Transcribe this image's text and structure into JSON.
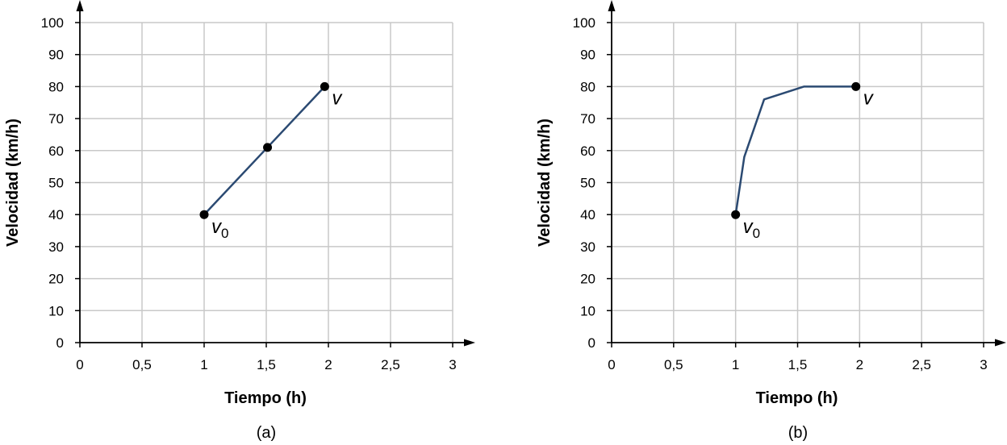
{
  "chart_data": [
    {
      "type": "line",
      "caption": "(a)",
      "xlabel": "Tiempo (h)",
      "ylabel": "Velocidad (km/h)",
      "xlim": [
        0,
        3
      ],
      "ylim": [
        0,
        100
      ],
      "xticks": [
        0,
        0.5,
        1,
        1.5,
        2,
        2.5,
        3
      ],
      "xtick_labels": [
        "0",
        "0,5",
        "1",
        "1,5",
        "2",
        "2,5",
        "3"
      ],
      "yticks": [
        0,
        10,
        20,
        30,
        40,
        50,
        60,
        70,
        80,
        90,
        100
      ],
      "ytick_labels": [
        "0",
        "10",
        "20",
        "30",
        "40",
        "50",
        "60",
        "70",
        "80",
        "90",
        "100"
      ],
      "grid": true,
      "line_color": "#2b4a72",
      "series": [
        {
          "x": [
            1,
            1.51,
            1.97
          ],
          "y": [
            40,
            61,
            80
          ]
        }
      ],
      "markers": [
        {
          "x": 1,
          "y": 40,
          "label": "v",
          "sub": "0"
        },
        {
          "x": 1.51,
          "y": 61,
          "label": "",
          "sub": ""
        },
        {
          "x": 1.97,
          "y": 80,
          "label": "v",
          "sub": ""
        }
      ]
    },
    {
      "type": "line",
      "caption": "(b)",
      "xlabel": "Tiempo (h)",
      "ylabel": "Velocidad (km/h)",
      "xlim": [
        0,
        3
      ],
      "ylim": [
        0,
        100
      ],
      "xticks": [
        0,
        0.5,
        1,
        1.5,
        2,
        2.5,
        3
      ],
      "xtick_labels": [
        "0",
        "0,5",
        "1",
        "1,5",
        "2",
        "2,5",
        "3"
      ],
      "yticks": [
        0,
        10,
        20,
        30,
        40,
        50,
        60,
        70,
        80,
        90,
        100
      ],
      "ytick_labels": [
        "0",
        "10",
        "20",
        "30",
        "40",
        "50",
        "60",
        "70",
        "80",
        "90",
        "100"
      ],
      "grid": true,
      "line_color": "#2b4a72",
      "series": [
        {
          "x": [
            1,
            1.07,
            1.23,
            1.55,
            1.97
          ],
          "y": [
            40,
            58,
            76,
            80,
            80
          ]
        }
      ],
      "markers": [
        {
          "x": 1,
          "y": 40,
          "label": "v",
          "sub": "0"
        },
        {
          "x": 1.97,
          "y": 80,
          "label": "v",
          "sub": ""
        }
      ]
    }
  ]
}
